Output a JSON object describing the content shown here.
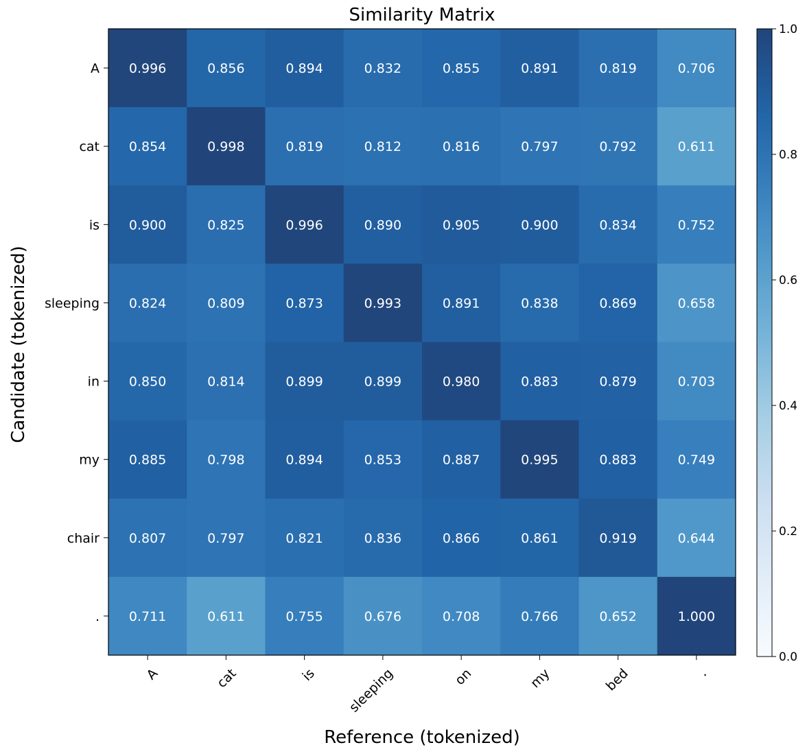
{
  "chart_data": {
    "type": "heatmap",
    "title": "Similarity Matrix",
    "xlabel": "Reference (tokenized)",
    "ylabel": "Candidate (tokenized)",
    "x_categories": [
      "A",
      "cat",
      "is",
      "sleeping",
      "on",
      "my",
      "bed",
      "."
    ],
    "y_categories": [
      "A",
      "cat",
      "is",
      "sleeping",
      "in",
      "my",
      "chair",
      "."
    ],
    "values": [
      [
        0.996,
        0.856,
        0.894,
        0.832,
        0.855,
        0.891,
        0.819,
        0.706
      ],
      [
        0.854,
        0.998,
        0.819,
        0.812,
        0.816,
        0.797,
        0.792,
        0.611
      ],
      [
        0.9,
        0.825,
        0.996,
        0.89,
        0.905,
        0.9,
        0.834,
        0.752
      ],
      [
        0.824,
        0.809,
        0.873,
        0.993,
        0.891,
        0.838,
        0.869,
        0.658
      ],
      [
        0.85,
        0.814,
        0.899,
        0.899,
        0.98,
        0.883,
        0.879,
        0.703
      ],
      [
        0.885,
        0.798,
        0.894,
        0.853,
        0.887,
        0.995,
        0.883,
        0.749
      ],
      [
        0.807,
        0.797,
        0.821,
        0.836,
        0.866,
        0.861,
        0.919,
        0.644
      ],
      [
        0.711,
        0.611,
        0.755,
        0.676,
        0.708,
        0.766,
        0.652,
        1.0
      ]
    ],
    "value_labels": [
      [
        "0.996",
        "0.856",
        "0.894",
        "0.832",
        "0.855",
        "0.891",
        "0.819",
        "0.706"
      ],
      [
        "0.854",
        "0.998",
        "0.819",
        "0.812",
        "0.816",
        "0.797",
        "0.792",
        "0.611"
      ],
      [
        "0.900",
        "0.825",
        "0.996",
        "0.890",
        "0.905",
        "0.900",
        "0.834",
        "0.752"
      ],
      [
        "0.824",
        "0.809",
        "0.873",
        "0.993",
        "0.891",
        "0.838",
        "0.869",
        "0.658"
      ],
      [
        "0.850",
        "0.814",
        "0.899",
        "0.899",
        "0.980",
        "0.883",
        "0.879",
        "0.703"
      ],
      [
        "0.885",
        "0.798",
        "0.894",
        "0.853",
        "0.887",
        "0.995",
        "0.883",
        "0.749"
      ],
      [
        "0.807",
        "0.797",
        "0.821",
        "0.836",
        "0.866",
        "0.861",
        "0.919",
        "0.644"
      ],
      [
        "0.711",
        "0.611",
        "0.755",
        "0.676",
        "0.708",
        "0.766",
        "0.652",
        "1.000"
      ]
    ],
    "colorbar": {
      "range": [
        0,
        1
      ],
      "ticks": [
        0.0,
        0.2,
        0.4,
        0.6,
        0.8,
        1.0
      ],
      "tick_labels": [
        "0.0",
        "0.2",
        "0.4",
        "0.6",
        "0.8",
        "1.0"
      ]
    },
    "colormap": "Blues",
    "colormap_stops": [
      "#f7fbff",
      "#deebf7",
      "#c6dbef",
      "#9ecae1",
      "#6baed6",
      "#4292c6",
      "#2171b5",
      "#08519c",
      "#08306b"
    ],
    "opacity": 0.9
  }
}
